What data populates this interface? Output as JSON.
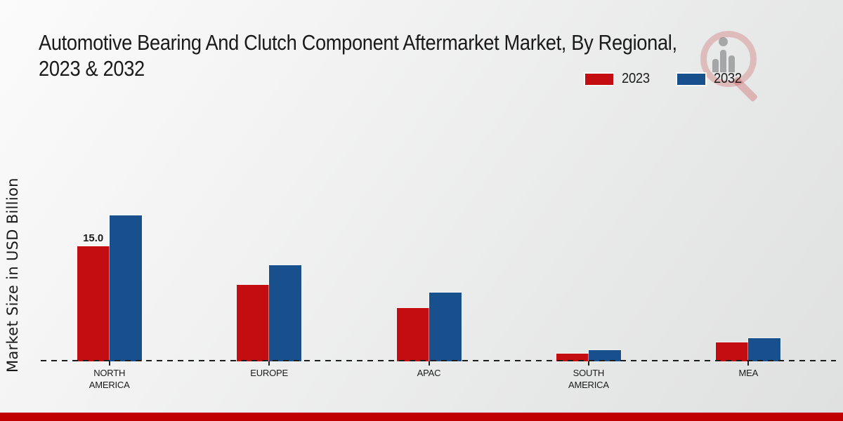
{
  "title_lines": [
    "Automotive Bearing And Clutch Component Aftermarket Market, By Regional,",
    "2023 & 2032"
  ],
  "chart_data": {
    "type": "bar",
    "title": "Automotive Bearing And Clutch Component Aftermarket Market, By Regional, 2023 & 2032",
    "ylabel": "Market Size in USD Billion",
    "xlabel": "",
    "categories": [
      "NORTH AMERICA",
      "EUROPE",
      "APAC",
      "SOUTH AMERICA",
      "MEA"
    ],
    "series": [
      {
        "name": "2023",
        "color": "#c40d11",
        "values": [
          15.0,
          10.0,
          7.0,
          1.0,
          2.5
        ]
      },
      {
        "name": "2032",
        "color": "#17508c",
        "values": [
          19.0,
          12.5,
          9.0,
          1.5,
          3.0
        ]
      }
    ],
    "value_labels": [
      {
        "series_index": 0,
        "category_index": 0,
        "text": "15.0"
      }
    ],
    "ylim": [
      0,
      20
    ],
    "grid": false,
    "legend_position": "top-right",
    "baseline_style": "dashed"
  },
  "colors": {
    "series_2023": "#c40d11",
    "series_2032": "#17508c",
    "footer_bar": "#c00000",
    "text": "#1a1a1a"
  },
  "icons": {
    "watermark": "magnifier-bar-chart-logo"
  }
}
